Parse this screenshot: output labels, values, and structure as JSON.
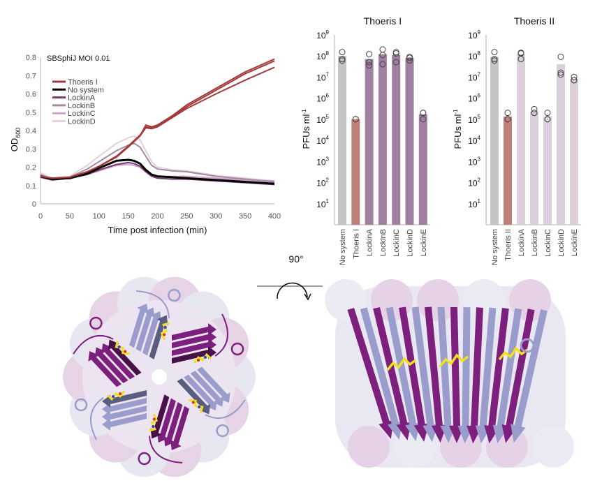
{
  "rotation_label": "90°",
  "chart_data": [
    {
      "type": "line",
      "title": "SBSphiJ MOI 0.01",
      "xlabel": "Time post infection (min)",
      "ylabel": "OD",
      "ylabel_sub": "600",
      "xlim": [
        0,
        400
      ],
      "ylim": [
        0,
        0.8
      ],
      "xticks": [
        "0",
        "50",
        "100",
        "150",
        "200",
        "250",
        "300",
        "350",
        "400"
      ],
      "yticks": [
        "0",
        "0.1",
        "0.2",
        "0.3",
        "0.4",
        "0.5",
        "0.6",
        "0.7",
        "0.8"
      ],
      "legend_position": "top-left",
      "x": [
        0,
        20,
        50,
        80,
        100,
        130,
        150,
        160,
        170,
        180,
        190,
        200,
        225,
        250,
        300,
        350,
        400
      ],
      "series": [
        {
          "name": "Thoeris I",
          "color": "#a33a3a",
          "replicates": [
            [
              0.15,
              0.14,
              0.145,
              0.175,
              0.205,
              0.255,
              0.31,
              0.34,
              0.37,
              0.43,
              0.42,
              0.43,
              0.48,
              0.54,
              0.63,
              0.72,
              0.79
            ],
            [
              0.15,
              0.14,
              0.145,
              0.175,
              0.205,
              0.26,
              0.315,
              0.345,
              0.375,
              0.42,
              0.415,
              0.425,
              0.475,
              0.53,
              0.62,
              0.71,
              0.78
            ],
            [
              0.15,
              0.14,
              0.145,
              0.175,
              0.205,
              0.26,
              0.31,
              0.34,
              0.37,
              0.415,
              0.41,
              0.42,
              0.47,
              0.52,
              0.6,
              0.675,
              0.745
            ]
          ]
        },
        {
          "name": "No system",
          "color": "#000000",
          "replicates": [
            [
              0.15,
              0.135,
              0.14,
              0.165,
              0.195,
              0.235,
              0.24,
              0.235,
              0.22,
              0.185,
              0.16,
              0.15,
              0.145,
              0.14,
              0.13,
              0.12,
              0.11
            ]
          ]
        },
        {
          "name": "LockinA",
          "color": "#6e3d6e",
          "replicates": [
            [
              0.145,
              0.13,
              0.14,
              0.16,
              0.185,
              0.215,
              0.225,
              0.22,
              0.205,
              0.175,
              0.15,
              0.14,
              0.135,
              0.135,
              0.125,
              0.115,
              0.105
            ]
          ]
        },
        {
          "name": "LockinB",
          "color": "#a58aa5",
          "replicates": [
            [
              0.16,
              0.135,
              0.145,
              0.19,
              0.23,
              0.29,
              0.32,
              0.33,
              0.31,
              0.26,
              0.21,
              0.19,
              0.18,
              0.175,
              0.15,
              0.135,
              0.12
            ]
          ]
        },
        {
          "name": "LockinC",
          "color": "#d4a0cc",
          "replicates": [
            [
              0.145,
              0.13,
              0.14,
              0.16,
              0.18,
              0.21,
              0.215,
              0.21,
              0.2,
              0.175,
              0.16,
              0.15,
              0.15,
              0.15,
              0.14,
              0.13,
              0.125
            ]
          ]
        },
        {
          "name": "LockinD",
          "color": "#e4d0dc",
          "replicates": [
            [
              0.17,
              0.14,
              0.15,
              0.21,
              0.26,
              0.33,
              0.36,
              0.37,
              0.35,
              0.29,
              0.23,
              0.2,
              0.185,
              0.18,
              0.155,
              0.14,
              0.125
            ]
          ]
        }
      ]
    },
    {
      "type": "bar",
      "title": "Thoeris I",
      "ylabel": "PFUs ml",
      "ylabel_sup": "-1",
      "yscale": "log",
      "ylim": [
        1,
        1000000000
      ],
      "ytick_exponents": [
        "1",
        "2",
        "3",
        "4",
        "5",
        "6",
        "7",
        "8",
        "9"
      ],
      "ytick_base": "10",
      "categories": [
        "No system",
        "Thoeris I",
        "LockinA",
        "LockinB",
        "LockinC",
        "LockinD",
        "LockinE"
      ],
      "values": [
        100000000,
        100000,
        70000000,
        120000000,
        110000000,
        80000000,
        170000
      ],
      "points": [
        [
          150000000,
          70000000,
          60000000
        ],
        [
          100000,
          100000,
          100000
        ],
        [
          120000000,
          50000000,
          35000000
        ],
        [
          200000000,
          110000000,
          40000000
        ],
        [
          150000000,
          130000000,
          50000000
        ],
        [
          90000000,
          80000000,
          60000000
        ],
        [
          200000,
          200000,
          100000
        ]
      ],
      "colors": [
        "#c4c4c4",
        "#c0807a",
        "#a07fa0",
        "#a07fa0",
        "#a07fa0",
        "#a07fa0",
        "#a07fa0"
      ]
    },
    {
      "type": "bar",
      "title": "Thoeris II",
      "ylabel": "PFUs ml",
      "ylabel_sup": "-1",
      "yscale": "log",
      "ylim": [
        1,
        1000000000
      ],
      "ytick_exponents": [
        "1",
        "2",
        "3",
        "4",
        "5",
        "6",
        "7",
        "8",
        "9"
      ],
      "ytick_base": "10",
      "categories": [
        "No system",
        "Thoeris II",
        "LockinA",
        "LockinB",
        "LockinC",
        "LockinD",
        "LockinE"
      ],
      "values": [
        90000000,
        130000,
        120000000,
        230000,
        130000,
        40000000,
        8000000
      ],
      "points": [
        [
          150000000,
          70000000,
          60000000
        ],
        [
          200000,
          100000,
          100000
        ],
        [
          140000000,
          130000000,
          70000000
        ],
        [
          300000,
          200000,
          200000
        ],
        [
          200000,
          100000,
          100000
        ],
        [
          90000000,
          16000000,
          13000000
        ],
        [
          10000000,
          7000000,
          7000000
        ]
      ],
      "colors": [
        "#c4c4c4",
        "#c0807a",
        "#dccfdc",
        "#dccfdc",
        "#dccfdc",
        "#dccfdc",
        "#dccfdc"
      ]
    }
  ]
}
